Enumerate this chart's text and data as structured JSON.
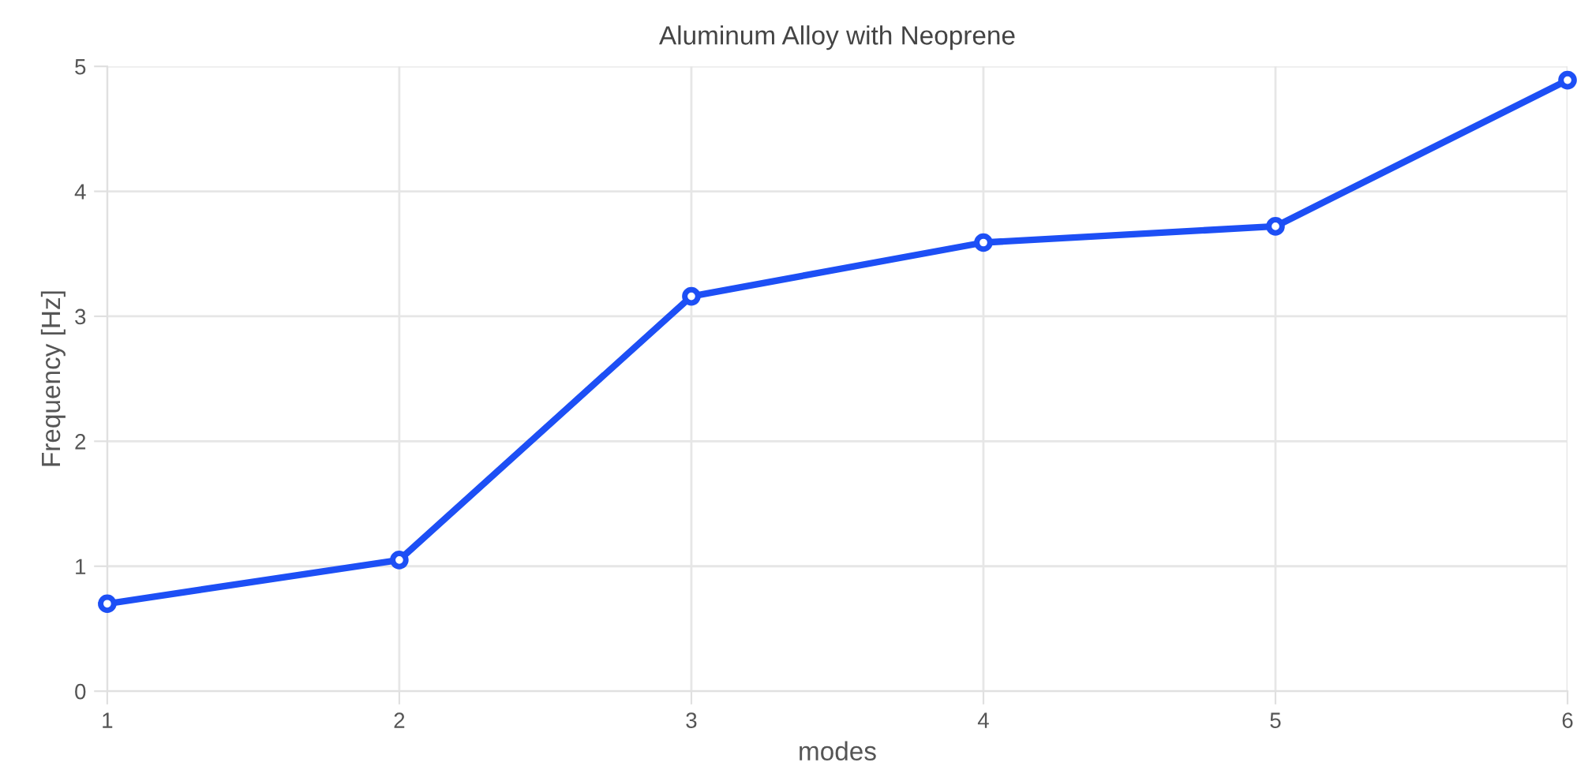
{
  "chart_data": {
    "type": "line",
    "title": "Aluminum Alloy with Neoprene",
    "xlabel": "modes",
    "ylabel": "Frequency [Hz]",
    "categories": [
      "1",
      "2",
      "3",
      "4",
      "5",
      "6"
    ],
    "series": [
      {
        "color": "#1d4ff5",
        "values": [
          0.7,
          1.05,
          3.16,
          3.59,
          3.72,
          4.89
        ]
      }
    ],
    "ylim": [
      0,
      5
    ],
    "yticks": [
      0,
      1,
      2,
      3,
      4,
      5
    ],
    "grid": true,
    "marker": "circle",
    "line_style": "solid"
  }
}
